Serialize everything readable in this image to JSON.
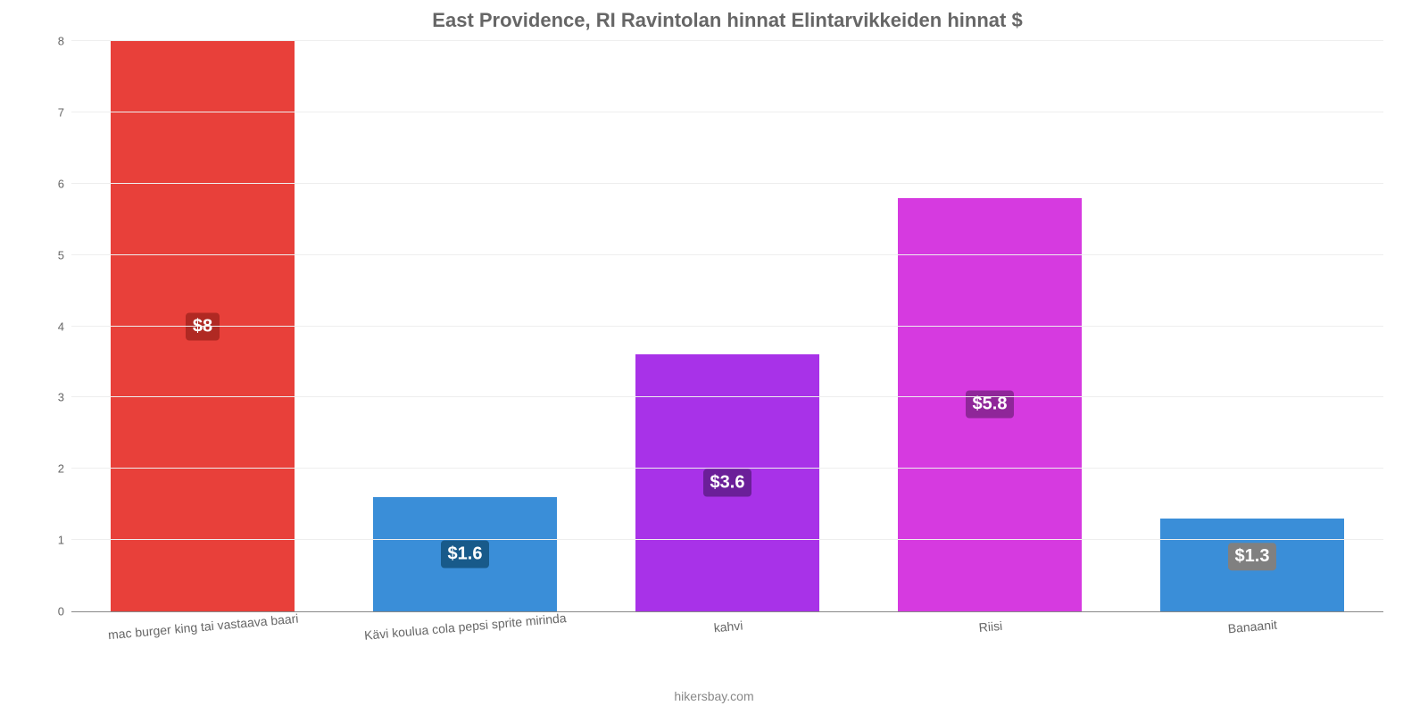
{
  "chart": {
    "type": "bar",
    "title": "East Providence, RI Ravintolan hinnat Elintarvikkeiden hinnat $",
    "title_fontsize": 22,
    "title_color": "#666666",
    "background_color": "#ffffff",
    "grid_color": "#eeeeee",
    "axis_color": "#888888",
    "y": {
      "min": 0,
      "max": 8,
      "tick_step": 1,
      "tick_labels": [
        "0",
        "1",
        "2",
        "3",
        "4",
        "5",
        "6",
        "7",
        "8"
      ],
      "tick_fontsize": 13,
      "tick_color": "#666666"
    },
    "x_label_fontsize": 14,
    "x_label_color": "#666666",
    "x_label_rotation_deg": -5,
    "bar_width_pct": 70,
    "value_label_fontsize": 20,
    "categories": [
      "mac burger king tai vastaava baari",
      "Kävi koulua cola pepsi sprite mirinda",
      "kahvi",
      "Riisi",
      "Banaanit"
    ],
    "values": [
      8,
      1.6,
      3.6,
      5.8,
      1.3
    ],
    "value_labels": [
      "$8",
      "$1.6",
      "$3.6",
      "$5.8",
      "$1.3"
    ],
    "bar_colors": [
      "#e8403a",
      "#3a8ed8",
      "#a832e8",
      "#d63ae0",
      "#3a8ed8"
    ],
    "badge_colors": [
      "#b02923",
      "#185a8a",
      "#6b1f99",
      "#8f2699",
      "#808080"
    ]
  },
  "attribution": {
    "text": "hikersbay.com",
    "fontsize": 14,
    "color": "#888888"
  }
}
